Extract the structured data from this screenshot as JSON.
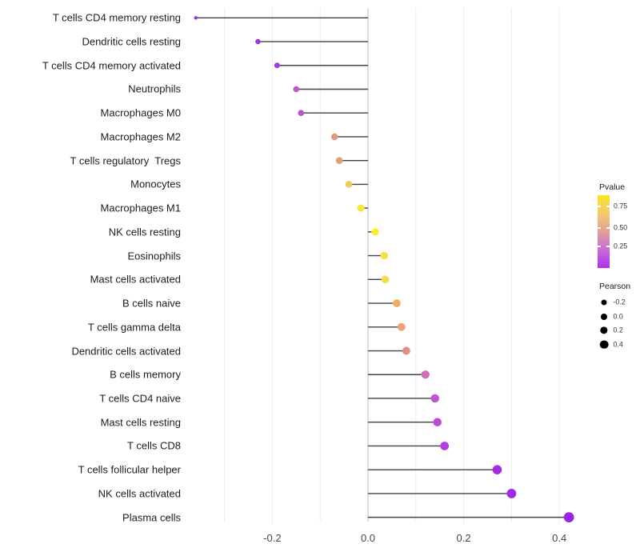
{
  "chart_data": {
    "type": "lollipop",
    "title": "",
    "xlabel": "",
    "ylabel": "",
    "orientation": "horizontal",
    "x_axis": {
      "tick_labels": [
        "-0.2",
        "0.0",
        "0.2",
        "0.4"
      ],
      "tick_values": [
        -0.2,
        0.0,
        0.2,
        0.4
      ],
      "grid_from": -0.3,
      "grid_to": 0.4,
      "grid_step": 0.1,
      "zero_line": true
    },
    "rows": [
      {
        "label": "T cells CD4 memory resting",
        "pearson": -0.36,
        "dot_color": "#9531E3"
      },
      {
        "label": "Dendritic cells resting",
        "pearson": -0.23,
        "dot_color": "#9D36DF"
      },
      {
        "label": "T cells CD4 memory activated",
        "pearson": -0.19,
        "dot_color": "#A439DC"
      },
      {
        "label": "Neutrophils",
        "pearson": -0.15,
        "dot_color": "#C353CE"
      },
      {
        "label": "Macrophages M0",
        "pearson": -0.14,
        "dot_color": "#C150D0"
      },
      {
        "label": "Macrophages M2",
        "pearson": -0.07,
        "dot_color": "#DF9A76"
      },
      {
        "label": "T cells regulatory  Tregs",
        "pearson": -0.06,
        "dot_color": "#E0A178"
      },
      {
        "label": "Monocytes",
        "pearson": -0.04,
        "dot_color": "#F0CB60"
      },
      {
        "label": "Macrophages M1",
        "pearson": -0.015,
        "dot_color": "#F6E83A"
      },
      {
        "label": "NK cells resting",
        "pearson": 0.015,
        "dot_color": "#FBEE2C"
      },
      {
        "label": "Eosinophils",
        "pearson": 0.034,
        "dot_color": "#F5E23E"
      },
      {
        "label": "Mast cells activated",
        "pearson": 0.036,
        "dot_color": "#F4DE48"
      },
      {
        "label": "B cells naive",
        "pearson": 0.06,
        "dot_color": "#F0AD62"
      },
      {
        "label": "T cells gamma delta",
        "pearson": 0.07,
        "dot_color": "#E8A476"
      },
      {
        "label": "Dendritic cells activated",
        "pearson": 0.08,
        "dot_color": "#E08E88"
      },
      {
        "label": "B cells memory",
        "pearson": 0.12,
        "dot_color": "#D36CBA"
      },
      {
        "label": "T cells CD4 naive",
        "pearson": 0.14,
        "dot_color": "#C253D2"
      },
      {
        "label": "Mast cells resting",
        "pearson": 0.145,
        "dot_color": "#BD4CD4"
      },
      {
        "label": "T cells CD8",
        "pearson": 0.16,
        "dot_color": "#B23EDE"
      },
      {
        "label": "T cells follicular helper",
        "pearson": 0.27,
        "dot_color": "#A32BE2"
      },
      {
        "label": "NK cells activated",
        "pearson": 0.3,
        "dot_color": "#9F2AE5"
      },
      {
        "label": "Plasma cells",
        "pearson": 0.42,
        "dot_color": "#9B22E8"
      }
    ],
    "legend_pvalue": {
      "title": "Pvalue",
      "tick_labels": [
        "0.75",
        "0.50",
        "0.25"
      ],
      "gradient_top_to_bottom": [
        "#FAE622",
        "#F2C874",
        "#E2A68F",
        "#CB70D2",
        "#B12EF0"
      ]
    },
    "legend_pearson": {
      "title": "Pearson",
      "dot_color": "#000000",
      "items": [
        {
          "label": "-0.2",
          "value": -0.2
        },
        {
          "label": "0.0",
          "value": 0.0
        },
        {
          "label": "0.2",
          "value": 0.2
        },
        {
          "label": "0.4",
          "value": 0.4
        }
      ]
    },
    "layout_hints": {
      "background": "#ffffff",
      "grid_color": "#ededed",
      "stem_color": "#424242",
      "zero_line_color": "#d4d4d4",
      "legend_position": "right"
    }
  }
}
